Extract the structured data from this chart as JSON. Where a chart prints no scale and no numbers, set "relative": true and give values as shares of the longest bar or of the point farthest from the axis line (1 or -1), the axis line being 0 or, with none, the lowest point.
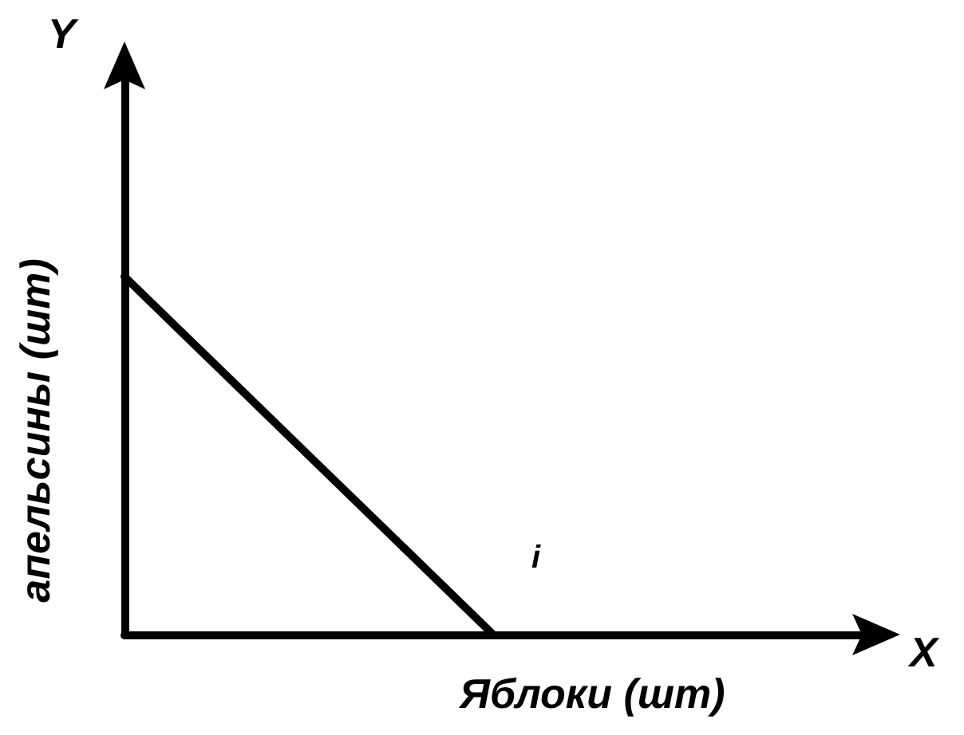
{
  "chart_data": {
    "type": "line",
    "relative": true,
    "xlabel": "Яблоки (шт)",
    "ylabel": "апельсины (шт)",
    "annotations": [
      "Y",
      "X",
      "i"
    ],
    "categories": [
      null,
      null,
      null,
      null,
      null
    ],
    "series": [
      {
        "color": "#000000",
        "values": [
          1,
          0.5,
          0,
          null,
          null
        ]
      }
    ],
    "marker": "none",
    "grid": false
  }
}
